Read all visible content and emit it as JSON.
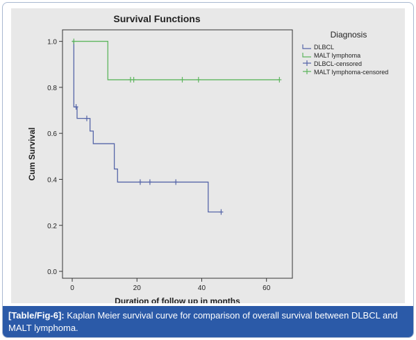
{
  "chart_data": {
    "type": "line",
    "subtype": "kaplan-meier step",
    "title": "Survival Functions",
    "xlabel": "Duration of follow up in months",
    "ylabel": "Cum Survival",
    "xlim": [
      -3,
      68
    ],
    "ylim": [
      -0.03,
      1.05
    ],
    "x_ticks": [
      0,
      20,
      40,
      60
    ],
    "y_ticks": [
      0.0,
      0.2,
      0.4,
      0.6,
      0.8,
      1.0
    ],
    "y_tick_labels": [
      "0.0",
      "0.2",
      "0.4",
      "0.6",
      "0.8",
      "1.0"
    ],
    "grid": false,
    "legend_title": "Diagnosis",
    "legend_position": "right",
    "legend": [
      "DLBCL",
      "MALT lymphoma",
      "DLBCL-censored",
      "MALT lymphoma-censored"
    ],
    "series": [
      {
        "name": "DLBCL",
        "color": "#5565a8",
        "steps": [
          [
            0,
            1.0
          ],
          [
            0.5,
            0.715
          ],
          [
            1.5,
            0.665
          ],
          [
            5.5,
            0.61
          ],
          [
            6.5,
            0.555
          ],
          [
            13,
            0.445
          ],
          [
            14,
            0.388
          ],
          [
            42,
            0.258
          ],
          [
            46,
            0.258
          ]
        ],
        "censored": [
          [
            1.2,
            0.715
          ],
          [
            4.5,
            0.665
          ],
          [
            21,
            0.388
          ],
          [
            24,
            0.388
          ],
          [
            32,
            0.388
          ],
          [
            46,
            0.258
          ]
        ]
      },
      {
        "name": "MALT lymphoma",
        "color": "#5db55d",
        "steps": [
          [
            0,
            1.0
          ],
          [
            11,
            0.833
          ],
          [
            64,
            0.833
          ]
        ],
        "censored": [
          [
            0.5,
            1.0
          ],
          [
            18,
            0.833
          ],
          [
            19,
            0.833
          ],
          [
            34,
            0.833
          ],
          [
            39,
            0.833
          ],
          [
            64,
            0.833
          ]
        ]
      }
    ]
  },
  "caption": {
    "tag": "[Table/Fig-6]:",
    "text": " Kaplan Meier survival curve for comparison of overall survival between DLBCL and MALT lymphoma."
  }
}
